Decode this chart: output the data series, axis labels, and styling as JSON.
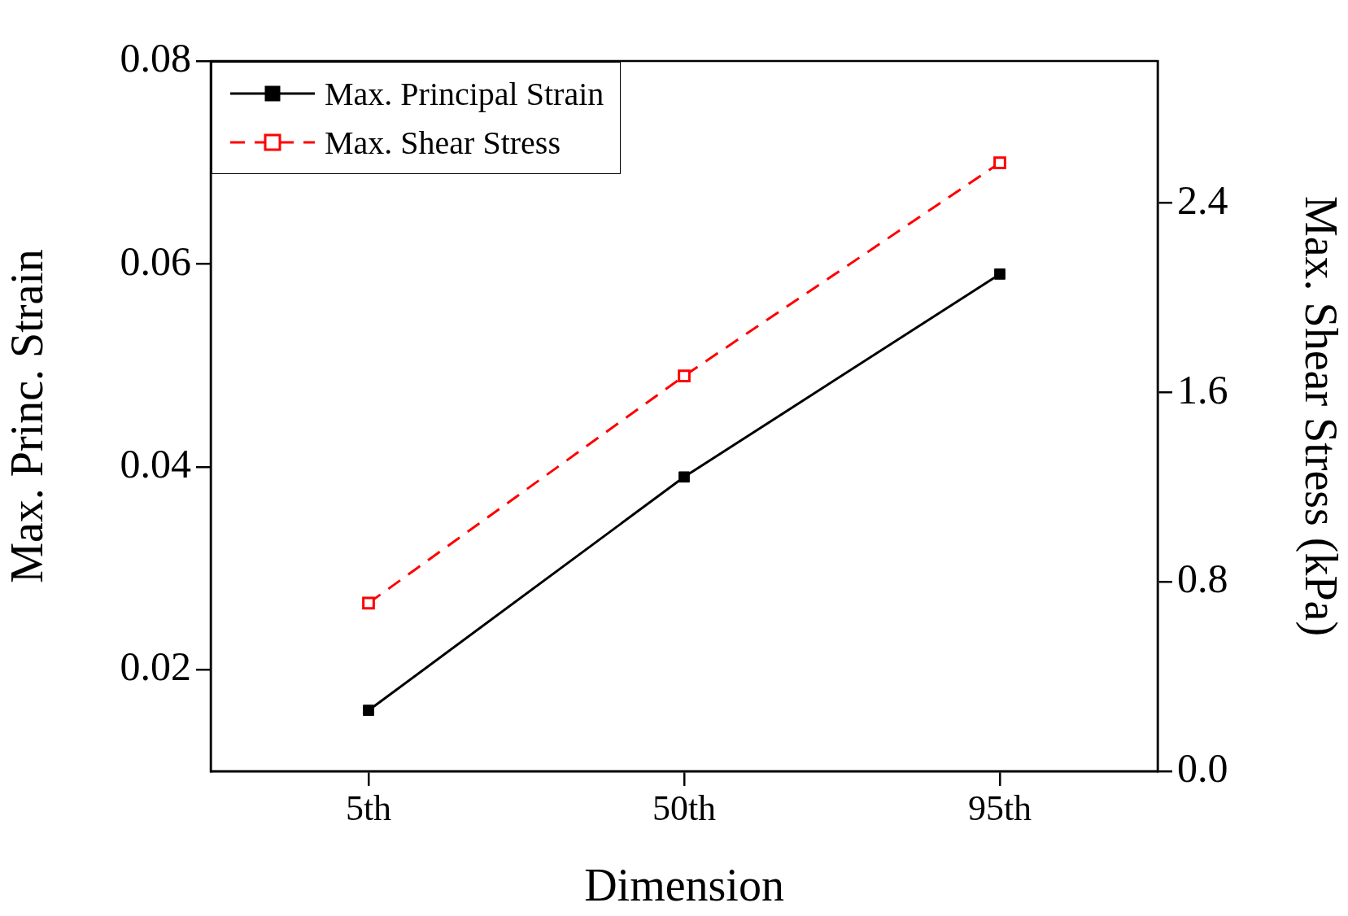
{
  "chart_data": {
    "type": "line",
    "xlabel": "Dimension",
    "ylabel": "Max. Princ. Strain",
    "y2label": "Max. Shear Stress (kPa)",
    "categories": [
      "5th",
      "50th",
      "95th"
    ],
    "series": [
      {
        "name": "Max. Principal Strain",
        "color": "#000000",
        "values": [
          0.016,
          0.039,
          0.059
        ],
        "marker": "square",
        "line_style": "solid"
      },
      {
        "name": "Max. Shear Stress",
        "color": "#ff0000",
        "values": [
          0.71,
          1.67,
          2.57
        ],
        "axis": "y2",
        "marker": "square",
        "line_style": "dashed"
      }
    ],
    "ylim": [
      0.01,
      0.08
    ],
    "yticks": [
      0.02,
      0.04,
      0.06,
      0.08
    ],
    "y2lim": [
      0,
      3
    ],
    "y2ticks": [
      {
        "value": 0,
        "label": "0.0"
      },
      {
        "value": 0.8,
        "label": "0.8"
      },
      {
        "value": 1.6,
        "label": "1.6"
      },
      {
        "value": 2.4,
        "label": "2.4"
      }
    ],
    "grid": false,
    "legend": "top left"
  }
}
